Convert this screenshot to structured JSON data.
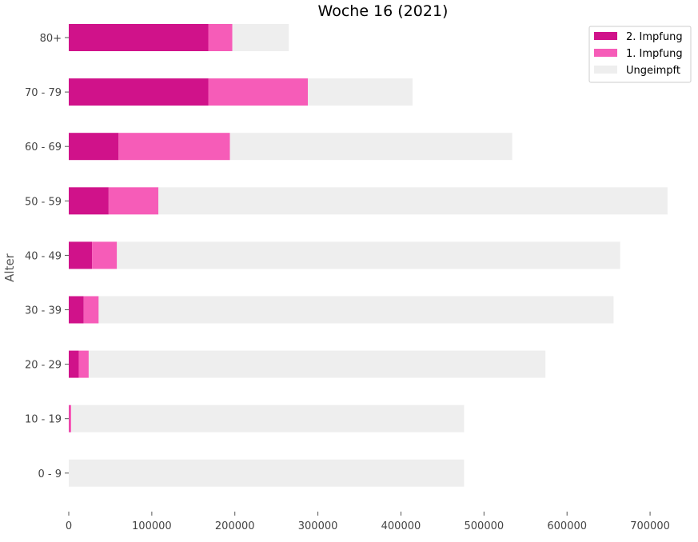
{
  "chart_data": {
    "type": "bar",
    "orientation": "horizontal",
    "stacked": true,
    "title": "Woche 16 (2021)",
    "xlabel": "",
    "ylabel": "Alter",
    "xlim": [
      0,
      750000
    ],
    "x_ticks": [
      0,
      100000,
      200000,
      300000,
      400000,
      500000,
      600000,
      700000
    ],
    "x_tick_labels": [
      "0",
      "100000",
      "200000",
      "300000",
      "400000",
      "500000",
      "600000",
      "700000"
    ],
    "categories": [
      "0 - 9",
      "10 - 19",
      "20 - 29",
      "30 - 39",
      "40 - 49",
      "50 - 59",
      "60 - 69",
      "70 - 79",
      "80+"
    ],
    "series": [
      {
        "name": "2. Impfung",
        "color": "#d0128a",
        "values": [
          0,
          500,
          12000,
          18000,
          28000,
          48000,
          60000,
          168000,
          168000
        ]
      },
      {
        "name": "1. Impfung",
        "color": "#f65cb8",
        "values": [
          0,
          2500,
          12000,
          18000,
          30000,
          60000,
          134000,
          120000,
          29000
        ]
      },
      {
        "name": "Ungeimpft",
        "color": "#eeeeee",
        "values": [
          476000,
          473000,
          550000,
          620000,
          606000,
          613000,
          340000,
          126000,
          68000
        ]
      }
    ],
    "legend": {
      "position": "top-right",
      "entries": [
        "2. Impfung",
        "1. Impfung",
        "Ungeimpft"
      ]
    },
    "grid": false
  }
}
